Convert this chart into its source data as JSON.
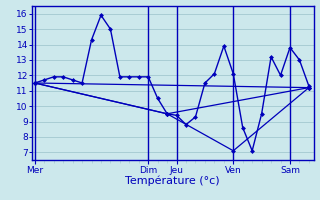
{
  "xlabel": "Température (°c)",
  "bg_color": "#cce8ec",
  "grid_color": "#a8cdd4",
  "line_color": "#0000bb",
  "spine_color": "#0000bb",
  "ylim": [
    6.5,
    16.5
  ],
  "yticks": [
    7,
    8,
    9,
    10,
    11,
    12,
    13,
    14,
    15,
    16
  ],
  "day_labels": [
    "Mer",
    "Dim",
    "Jeu",
    "Ven",
    "Sam"
  ],
  "day_positions": [
    0,
    12,
    15,
    21,
    27
  ],
  "xlim": [
    -0.3,
    29.5
  ],
  "series1_x": [
    0,
    1,
    2,
    3,
    4,
    5,
    6,
    7,
    8,
    9,
    10,
    11,
    12,
    13,
    14,
    15,
    16,
    17,
    18,
    19,
    20,
    21,
    22,
    23,
    24,
    25,
    26,
    27,
    28,
    29
  ],
  "series1_y": [
    11.5,
    11.7,
    11.9,
    11.9,
    11.7,
    11.5,
    14.3,
    15.9,
    15.0,
    11.9,
    11.9,
    11.9,
    11.9,
    10.5,
    9.5,
    9.4,
    8.8,
    9.3,
    11.5,
    12.1,
    13.9,
    12.1,
    8.6,
    7.1,
    9.5,
    13.2,
    12.0,
    13.8,
    13.0,
    11.3
  ],
  "series2_x": [
    0,
    29
  ],
  "series2_y": [
    11.5,
    11.2
  ],
  "series3_x": [
    0,
    14,
    29
  ],
  "series3_y": [
    11.5,
    9.5,
    11.2
  ],
  "series4_x": [
    0,
    14,
    21,
    29
  ],
  "series4_y": [
    11.5,
    9.5,
    7.1,
    11.2
  ],
  "xlabel_fontsize": 8,
  "tick_fontsize": 6.5
}
